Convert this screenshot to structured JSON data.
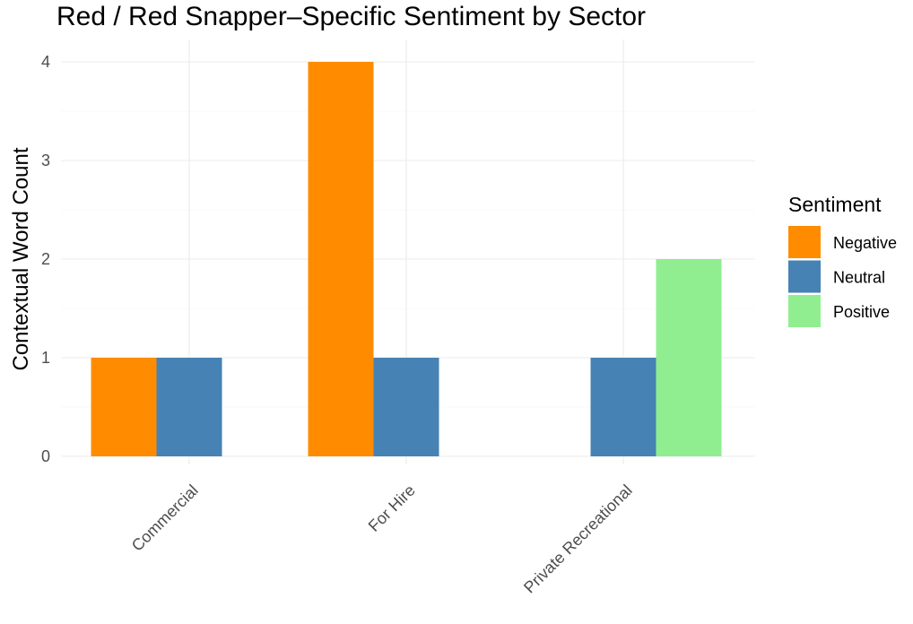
{
  "chart_data": {
    "type": "bar",
    "title": "Red / Red Snapper–Specific Sentiment by Sector",
    "xlabel": "",
    "ylabel": "Contextual Word Count",
    "categories": [
      "Commercial",
      "For Hire",
      "Private Recreational"
    ],
    "series": [
      {
        "name": "Negative",
        "color": "#ff8c00",
        "values": [
          1,
          4,
          null
        ]
      },
      {
        "name": "Neutral",
        "color": "#4682b4",
        "values": [
          1,
          1,
          1
        ]
      },
      {
        "name": "Positive",
        "color": "#90ee90",
        "values": [
          null,
          null,
          2
        ]
      }
    ],
    "ylim": [
      0,
      4
    ],
    "yticks": [
      0,
      1,
      2,
      3,
      4
    ],
    "grid": true,
    "legend": {
      "title": "Sentiment",
      "position": "right"
    }
  }
}
